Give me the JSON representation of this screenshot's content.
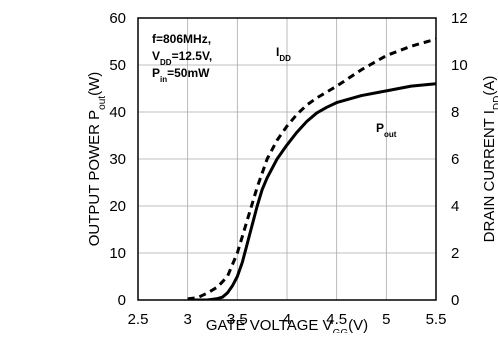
{
  "chart_data": {
    "type": "line",
    "title": "",
    "xlabel": {
      "main": "GATE VOLTAGE V",
      "sub": "GG",
      "tail": "(V)"
    },
    "ylabel_left": {
      "main": "OUTPUT POWER P",
      "sub": "out",
      "tail": "(W)"
    },
    "ylabel_right": {
      "main": "DRAIN CURRENT I",
      "sub": "DD",
      "tail": "(A)"
    },
    "xlim": [
      2.5,
      5.5
    ],
    "ylim_left": [
      0,
      60
    ],
    "ylim_right": [
      0,
      12
    ],
    "x_ticks": [
      "2.5",
      "3",
      "3.5",
      "4",
      "4.5",
      "5",
      "5.5"
    ],
    "y_left_ticks": [
      "0",
      "10",
      "20",
      "30",
      "40",
      "50",
      "60"
    ],
    "y_right_ticks": [
      "0",
      "2",
      "4",
      "6",
      "8",
      "10",
      "12"
    ],
    "grid": true,
    "conditions": [
      {
        "main": "f=806MHz,",
        "sub": "",
        "tail": ""
      },
      {
        "main": "V",
        "sub": "DD",
        "tail": "=12.5V,"
      },
      {
        "main": "P",
        "sub": "in",
        "tail": "=50mW"
      }
    ],
    "series": [
      {
        "name": "P",
        "name_sub": "out",
        "axis": "left",
        "style": "solid",
        "color": "#000000",
        "x": [
          3.0,
          3.2,
          3.3,
          3.35,
          3.4,
          3.45,
          3.5,
          3.55,
          3.6,
          3.65,
          3.7,
          3.75,
          3.8,
          3.9,
          4.0,
          4.1,
          4.2,
          4.3,
          4.4,
          4.5,
          4.75,
          5.0,
          5.25,
          5.5
        ],
        "values": [
          0,
          0,
          0.3,
          0.6,
          1.5,
          3,
          5,
          8,
          12,
          16,
          20,
          23.5,
          26,
          30,
          33,
          35.7,
          38,
          39.8,
          41,
          42,
          43.5,
          44.5,
          45.5,
          46
        ]
      },
      {
        "name": "I",
        "name_sub": "DD",
        "axis": "right",
        "style": "dashed",
        "color": "#000000",
        "x": [
          3.0,
          3.1,
          3.2,
          3.3,
          3.4,
          3.5,
          3.6,
          3.7,
          3.8,
          3.9,
          4.0,
          4.1,
          4.2,
          4.3,
          4.5,
          4.75,
          5.0,
          5.25,
          5.5
        ],
        "values": [
          0.05,
          0.1,
          0.3,
          0.55,
          1.0,
          2.0,
          3.4,
          4.8,
          6.0,
          6.8,
          7.4,
          7.9,
          8.3,
          8.6,
          9.1,
          9.8,
          10.4,
          10.8,
          11.1
        ]
      }
    ]
  }
}
